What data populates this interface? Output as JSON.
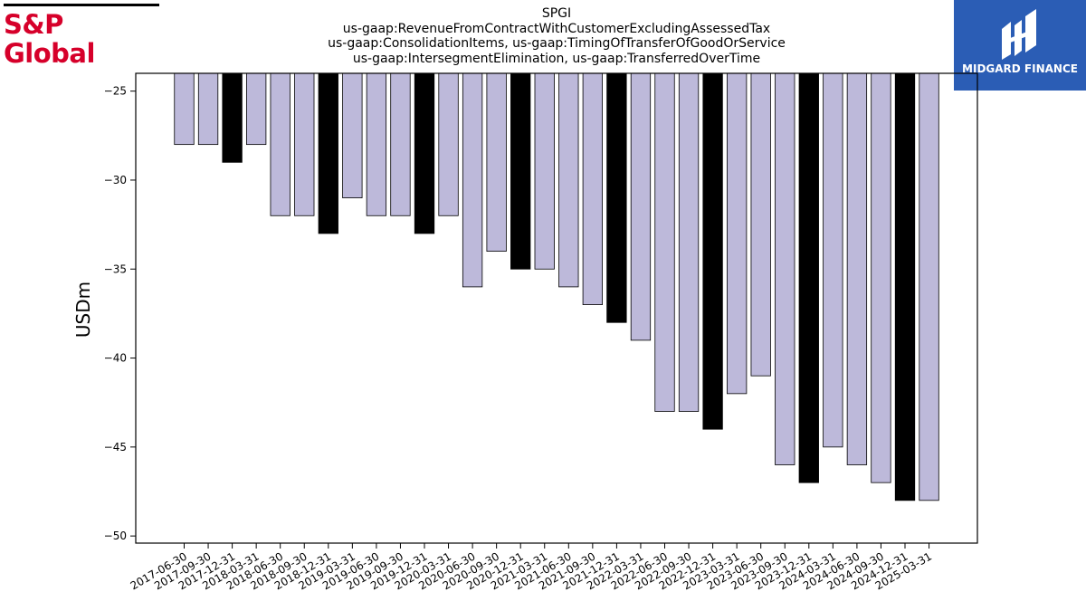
{
  "branding": {
    "left_logo_text": "S&P Global",
    "left_logo_color": "#d6002a",
    "right_logo_text": "MIDGARD FINANCE",
    "right_logo_bg": "#2b5db5"
  },
  "chart_data": {
    "type": "bar",
    "title_lines": [
      "SPGI",
      "us-gaap:RevenueFromContractWithCustomerExcludingAssessedTax",
      "us-gaap:ConsolidationItems, us-gaap:TimingOfTransferOfGoodOrService",
      "us-gaap:IntersegmentElimination, us-gaap:TransferredOverTime"
    ],
    "xlabel": "",
    "ylabel": "USDm",
    "ylim": [
      -50.4,
      -24
    ],
    "yticks": [
      -25,
      -30,
      -35,
      -40,
      -45,
      -50
    ],
    "categories": [
      "2017-06-30",
      "2017-09-30",
      "2017-12-31",
      "2018-03-31",
      "2018-06-30",
      "2018-09-30",
      "2018-12-31",
      "2019-03-31",
      "2019-06-30",
      "2019-09-30",
      "2019-12-31",
      "2020-03-31",
      "2020-06-30",
      "2020-09-30",
      "2020-12-31",
      "2021-03-31",
      "2021-06-30",
      "2021-09-30",
      "2021-12-31",
      "2022-03-31",
      "2022-06-30",
      "2022-09-30",
      "2022-12-31",
      "2023-03-31",
      "2023-06-30",
      "2023-09-30",
      "2023-12-31",
      "2024-03-31",
      "2024-06-30",
      "2024-09-30",
      "2024-12-31",
      "2025-03-31"
    ],
    "values": [
      -28,
      -28,
      -29,
      -28,
      -32,
      -32,
      -33,
      -31,
      -32,
      -32,
      -33,
      -32,
      -36,
      -34,
      -35,
      -35,
      -36,
      -37,
      -38,
      -39,
      -43,
      -43,
      -44,
      -42,
      -41,
      -46,
      -47,
      -45,
      -46,
      -47,
      -48,
      -48
    ],
    "highlight_quarter_end": "12-31",
    "colors": {
      "bar": "#bdb9da",
      "highlight": "#000000",
      "edge": "#000000"
    },
    "grid": false
  }
}
